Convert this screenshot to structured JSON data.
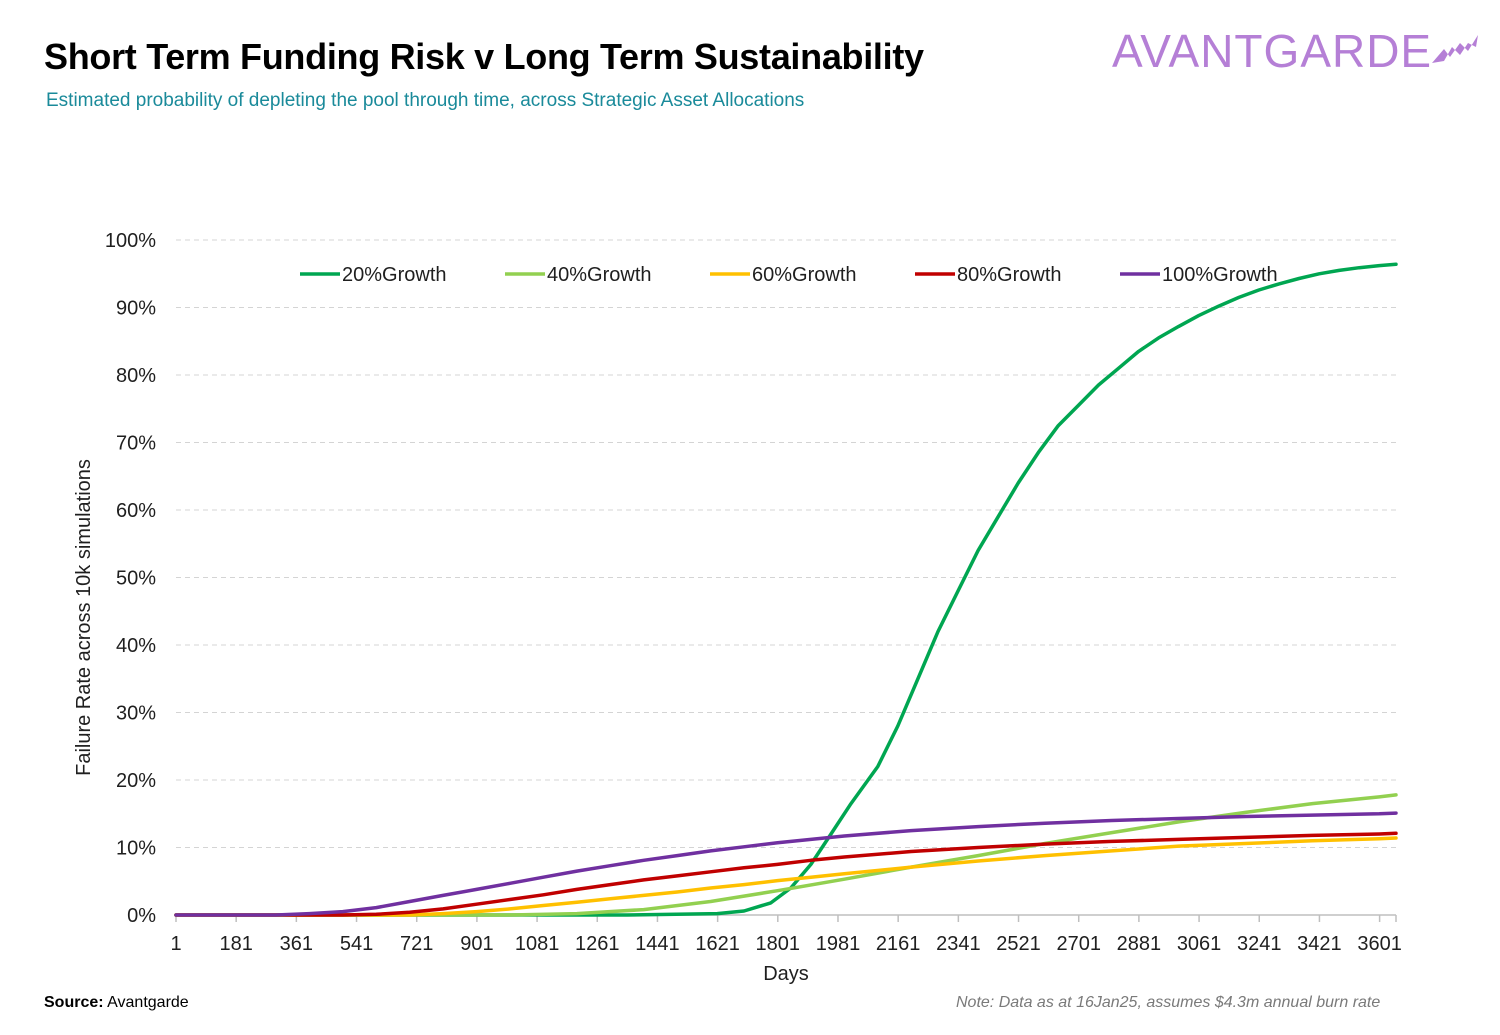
{
  "header": {
    "title": "Short Term Funding Risk v Long Term Sustainability",
    "subtitle": "Estimated probability of depleting the pool through time, across Strategic Asset Allocations",
    "logo_text": "AVANTGARDE"
  },
  "footer": {
    "source_label": "Source:",
    "source_value": "Avantgarde",
    "note": "Note: Data as at 16Jan25, assumes $4.3m annual burn rate"
  },
  "colors": {
    "subtitle": "#1a8a9a",
    "logo": "#b57fd6",
    "grid": "#d4d4d4",
    "axis": "#bfbfbf",
    "text": "#1f1f1f"
  },
  "chart_data": {
    "type": "line",
    "xlabel": "Days",
    "ylabel": "Failure Rate across 10k simulations",
    "xlim": [
      1,
      3650
    ],
    "ylim": [
      0,
      100
    ],
    "x_ticks": [
      1,
      181,
      361,
      541,
      721,
      901,
      1081,
      1261,
      1441,
      1621,
      1801,
      1981,
      2161,
      2341,
      2521,
      2701,
      2881,
      3061,
      3241,
      3421,
      3601
    ],
    "y_ticks": [
      0,
      10,
      20,
      30,
      40,
      50,
      60,
      70,
      80,
      90,
      100
    ],
    "y_tick_labels": [
      "0%",
      "10%",
      "20%",
      "30%",
      "40%",
      "50%",
      "60%",
      "70%",
      "80%",
      "90%",
      "100%"
    ],
    "grid": true,
    "legend_position": "top",
    "series": [
      {
        "name": "20%Growth",
        "color": "#00a651",
        "points": [
          [
            1,
            0
          ],
          [
            1350,
            0
          ],
          [
            1620,
            0.2
          ],
          [
            1700,
            0.6
          ],
          [
            1780,
            1.8
          ],
          [
            1840,
            4
          ],
          [
            1900,
            7.5
          ],
          [
            1960,
            12
          ],
          [
            2020,
            16.5
          ],
          [
            2100,
            22
          ],
          [
            2160,
            28
          ],
          [
            2220,
            35
          ],
          [
            2280,
            42
          ],
          [
            2340,
            48
          ],
          [
            2400,
            54
          ],
          [
            2460,
            59
          ],
          [
            2520,
            64
          ],
          [
            2580,
            68.5
          ],
          [
            2640,
            72.5
          ],
          [
            2700,
            75.5
          ],
          [
            2760,
            78.5
          ],
          [
            2820,
            81
          ],
          [
            2880,
            83.5
          ],
          [
            2940,
            85.5
          ],
          [
            3000,
            87.2
          ],
          [
            3060,
            88.8
          ],
          [
            3120,
            90.2
          ],
          [
            3180,
            91.5
          ],
          [
            3240,
            92.6
          ],
          [
            3300,
            93.5
          ],
          [
            3360,
            94.3
          ],
          [
            3420,
            95
          ],
          [
            3480,
            95.5
          ],
          [
            3540,
            95.9
          ],
          [
            3600,
            96.2
          ],
          [
            3650,
            96.4
          ]
        ]
      },
      {
        "name": "40%Growth",
        "color": "#92d050",
        "points": [
          [
            1,
            0
          ],
          [
            1000,
            0
          ],
          [
            1200,
            0.2
          ],
          [
            1400,
            0.8
          ],
          [
            1600,
            2
          ],
          [
            1800,
            3.6
          ],
          [
            2000,
            5.3
          ],
          [
            2200,
            7.1
          ],
          [
            2400,
            8.8
          ],
          [
            2600,
            10.6
          ],
          [
            2800,
            12.2
          ],
          [
            3000,
            13.8
          ],
          [
            3200,
            15.2
          ],
          [
            3400,
            16.5
          ],
          [
            3600,
            17.5
          ],
          [
            3650,
            17.8
          ]
        ]
      },
      {
        "name": "60%Growth",
        "color": "#ffc000",
        "points": [
          [
            1,
            0
          ],
          [
            700,
            0
          ],
          [
            800,
            0.2
          ],
          [
            900,
            0.5
          ],
          [
            1000,
            0.9
          ],
          [
            1100,
            1.4
          ],
          [
            1200,
            1.9
          ],
          [
            1300,
            2.4
          ],
          [
            1400,
            2.9
          ],
          [
            1500,
            3.4
          ],
          [
            1600,
            4
          ],
          [
            1700,
            4.5
          ],
          [
            1800,
            5.1
          ],
          [
            1900,
            5.6
          ],
          [
            2000,
            6.1
          ],
          [
            2200,
            7.1
          ],
          [
            2400,
            8
          ],
          [
            2600,
            8.8
          ],
          [
            2800,
            9.5
          ],
          [
            3000,
            10.2
          ],
          [
            3200,
            10.6
          ],
          [
            3400,
            11
          ],
          [
            3600,
            11.3
          ],
          [
            3650,
            11.4
          ]
        ]
      },
      {
        "name": "80%Growth",
        "color": "#c00000",
        "points": [
          [
            1,
            0
          ],
          [
            500,
            0
          ],
          [
            600,
            0.1
          ],
          [
            700,
            0.4
          ],
          [
            800,
            0.9
          ],
          [
            900,
            1.6
          ],
          [
            1000,
            2.3
          ],
          [
            1100,
            3
          ],
          [
            1200,
            3.8
          ],
          [
            1300,
            4.5
          ],
          [
            1400,
            5.2
          ],
          [
            1500,
            5.8
          ],
          [
            1600,
            6.4
          ],
          [
            1700,
            7
          ],
          [
            1800,
            7.5
          ],
          [
            1900,
            8.1
          ],
          [
            2000,
            8.6
          ],
          [
            2200,
            9.4
          ],
          [
            2400,
            10
          ],
          [
            2600,
            10.5
          ],
          [
            2800,
            10.9
          ],
          [
            3000,
            11.2
          ],
          [
            3200,
            11.5
          ],
          [
            3400,
            11.8
          ],
          [
            3600,
            12
          ],
          [
            3650,
            12.1
          ]
        ]
      },
      {
        "name": "100%Growth",
        "color": "#7030a0",
        "points": [
          [
            1,
            0
          ],
          [
            300,
            0
          ],
          [
            400,
            0.2
          ],
          [
            500,
            0.5
          ],
          [
            600,
            1.1
          ],
          [
            700,
            2
          ],
          [
            800,
            2.9
          ],
          [
            900,
            3.8
          ],
          [
            1000,
            4.7
          ],
          [
            1100,
            5.6
          ],
          [
            1200,
            6.5
          ],
          [
            1300,
            7.3
          ],
          [
            1400,
            8.1
          ],
          [
            1500,
            8.8
          ],
          [
            1600,
            9.5
          ],
          [
            1700,
            10.1
          ],
          [
            1800,
            10.7
          ],
          [
            1900,
            11.2
          ],
          [
            2000,
            11.7
          ],
          [
            2200,
            12.5
          ],
          [
            2400,
            13.1
          ],
          [
            2600,
            13.6
          ],
          [
            2800,
            14
          ],
          [
            3000,
            14.3
          ],
          [
            3200,
            14.6
          ],
          [
            3400,
            14.8
          ],
          [
            3600,
            15
          ],
          [
            3650,
            15.1
          ]
        ]
      }
    ]
  }
}
